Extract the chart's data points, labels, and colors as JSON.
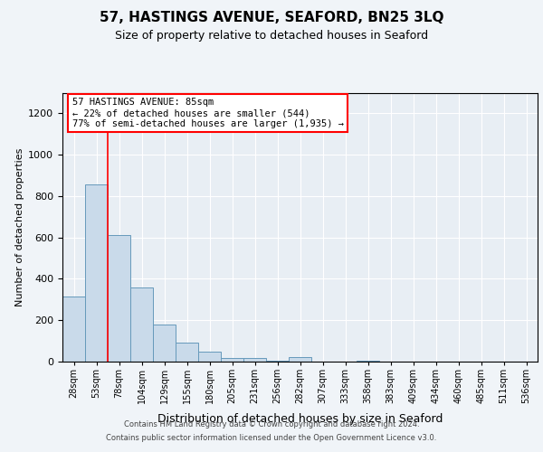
{
  "title_line1": "57, HASTINGS AVENUE, SEAFORD, BN25 3LQ",
  "title_line2": "Size of property relative to detached houses in Seaford",
  "xlabel": "Distribution of detached houses by size in Seaford",
  "ylabel": "Number of detached properties",
  "bar_color": "#c9daea",
  "bar_edge_color": "#6699bb",
  "bins": [
    "28sqm",
    "53sqm",
    "78sqm",
    "104sqm",
    "129sqm",
    "155sqm",
    "180sqm",
    "205sqm",
    "231sqm",
    "256sqm",
    "282sqm",
    "307sqm",
    "333sqm",
    "358sqm",
    "383sqm",
    "409sqm",
    "434sqm",
    "460sqm",
    "485sqm",
    "511sqm",
    "536sqm"
  ],
  "values": [
    315,
    855,
    610,
    360,
    180,
    90,
    50,
    18,
    16,
    5,
    20,
    0,
    0,
    5,
    0,
    0,
    0,
    0,
    0,
    0,
    0
  ],
  "ylim": [
    0,
    1300
  ],
  "yticks": [
    0,
    200,
    400,
    600,
    800,
    1000,
    1200
  ],
  "annotation_text": "57 HASTINGS AVENUE: 85sqm\n← 22% of detached houses are smaller (544)\n77% of semi-detached houses are larger (1,935) →",
  "vline_x_index": 1.5,
  "footer_line1": "Contains HM Land Registry data © Crown copyright and database right 2024.",
  "footer_line2": "Contains public sector information licensed under the Open Government Licence v3.0.",
  "background_color": "#f0f4f8",
  "plot_bg_color": "#e8eef4",
  "grid_color": "#ffffff"
}
